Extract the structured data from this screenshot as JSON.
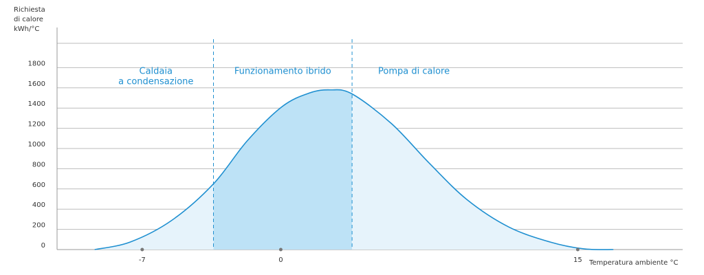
{
  "chart_data": {
    "type": "area",
    "y_label": [
      "Richiesta",
      "di calore",
      "kWh/°C"
    ],
    "x_label": "Temperatura ambiente °C",
    "x": [
      -9.4,
      -7.6,
      -5.5,
      -3.4,
      -1.7,
      0.07,
      1.46,
      2.5,
      3.6,
      5.6,
      7.5,
      9.4,
      11.5,
      13.6,
      15.3,
      16.8
    ],
    "series": [
      {
        "color": "#1e8fd0",
        "values": [
          0,
          75,
          290,
          650,
          1075,
          1415,
          1550,
          1580,
          1540,
          1245,
          855,
          495,
          225,
          75,
          7,
          0
        ]
      }
    ],
    "xlim": [
      -11.3,
      20.3
    ],
    "xticks": [
      -7,
      0,
      15
    ],
    "ylim": [
      0,
      2000
    ],
    "yticks": [
      0,
      200,
      400,
      600,
      800,
      1000,
      1200,
      1400,
      1600,
      1800
    ],
    "grid": true,
    "zones": [
      {
        "label": [
          "Caldaia",
          "a condensazione"
        ],
        "from": -11.3,
        "to": -3.4,
        "color": "#e6f3fb"
      },
      {
        "label": [
          "Funzionamento ibrido"
        ],
        "from": -3.4,
        "to": 3.6,
        "color": "#bde2f6"
      },
      {
        "label": [
          "Pompa di calore"
        ],
        "from": 3.6,
        "to": 20.3,
        "color": "#e6f3fb"
      }
    ]
  }
}
